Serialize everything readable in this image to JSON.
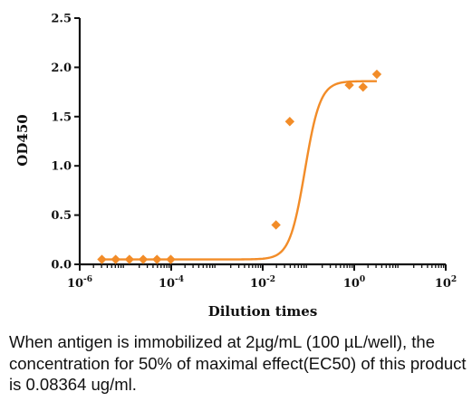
{
  "chart_data": {
    "type": "scatter",
    "xlabel": "Dilution times",
    "ylabel": "OD450",
    "x_scale": "log",
    "xlim": [
      1e-06,
      100
    ],
    "ylim": [
      0,
      2.5
    ],
    "x_ticks": [
      {
        "base": "10",
        "exp": "-6"
      },
      {
        "base": "10",
        "exp": "-4"
      },
      {
        "base": "10",
        "exp": "-2"
      },
      {
        "base": "10",
        "exp": "0"
      },
      {
        "base": "10",
        "exp": "2"
      }
    ],
    "y_ticks": [
      "0.0",
      "0.5",
      "1.0",
      "1.5",
      "2.0",
      "2.5"
    ],
    "grid": false,
    "color": "#F28C28",
    "series": [
      {
        "points": [
          {
            "x": 3.05e-06,
            "y": 0.05
          },
          {
            "x": 6.1e-06,
            "y": 0.05
          },
          {
            "x": 1.22e-05,
            "y": 0.05
          },
          {
            "x": 2.44e-05,
            "y": 0.05
          },
          {
            "x": 4.88e-05,
            "y": 0.05
          },
          {
            "x": 9.77e-05,
            "y": 0.05
          },
          {
            "x": 0.0195,
            "y": 0.4
          },
          {
            "x": 0.039,
            "y": 1.45
          },
          {
            "x": 0.78,
            "y": 1.82
          },
          {
            "x": 1.56,
            "y": 1.8
          },
          {
            "x": 3.12,
            "y": 1.93
          }
        ],
        "fit": {
          "model": "4PL",
          "bottom": 0.05,
          "top": 1.86,
          "ec50": 0.08364,
          "hill": 2.6
        }
      }
    ]
  },
  "caption": "When antigen is immobilized at 2µg/mL (100 µL/well), the concentration for 50% of maximal effect(EC50) of this product is 0.08364 ug/ml."
}
